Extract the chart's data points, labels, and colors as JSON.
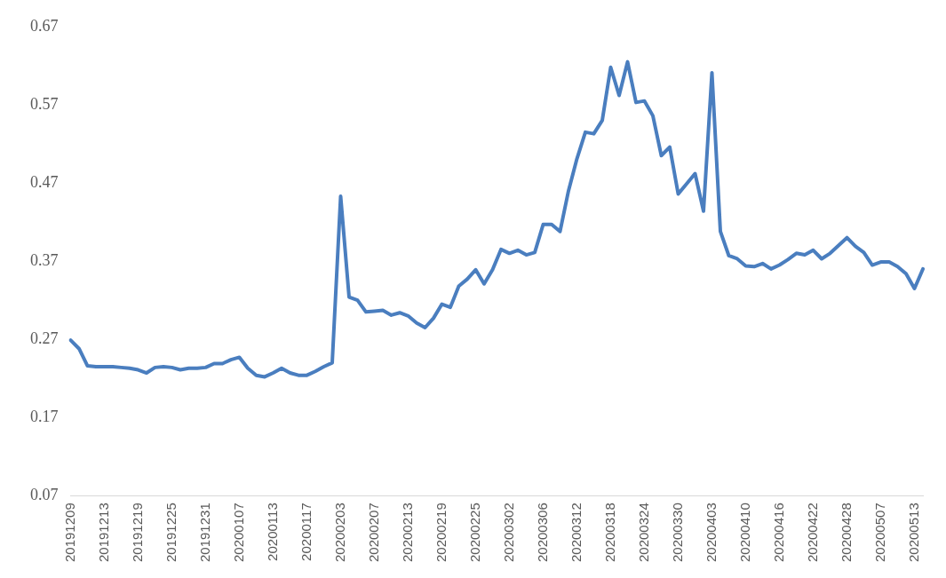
{
  "chart_data": {
    "type": "line",
    "categories": [
      "20191209",
      null,
      null,
      null,
      "20191213",
      null,
      null,
      null,
      "20191219",
      null,
      null,
      null,
      "20191225",
      null,
      null,
      null,
      "20191231",
      null,
      null,
      null,
      "20200107",
      null,
      null,
      null,
      "20200113",
      null,
      null,
      null,
      "20200117",
      null,
      null,
      null,
      "20200203",
      null,
      null,
      null,
      "20200207",
      null,
      null,
      null,
      "20200213",
      null,
      null,
      null,
      "20200219",
      null,
      null,
      null,
      "20200225",
      null,
      null,
      null,
      "20200302",
      null,
      null,
      null,
      "20200306",
      null,
      null,
      null,
      "20200312",
      null,
      null,
      null,
      "20200318",
      null,
      null,
      null,
      "20200324",
      null,
      null,
      null,
      "20200330",
      null,
      null,
      null,
      "20200403",
      null,
      null,
      null,
      "20200410",
      null,
      null,
      null,
      "20200416",
      null,
      null,
      null,
      "20200422",
      null,
      null,
      null,
      "20200428",
      null,
      null,
      null,
      "20200507",
      null,
      null,
      null,
      "20200513",
      null
    ],
    "series": [
      {
        "color": "#4a7ebf",
        "values": [
          0.269,
          0.258,
          0.236,
          0.235,
          0.235,
          0.235,
          0.234,
          0.233,
          0.231,
          0.227,
          0.234,
          0.235,
          0.234,
          0.231,
          0.233,
          0.233,
          0.234,
          0.239,
          0.239,
          0.244,
          0.247,
          0.233,
          0.224,
          0.222,
          0.227,
          0.233,
          0.227,
          0.224,
          0.224,
          0.229,
          0.235,
          0.24,
          0.453,
          0.324,
          0.32,
          0.305,
          0.306,
          0.307,
          0.301,
          0.304,
          0.3,
          0.291,
          0.285,
          0.297,
          0.315,
          0.311,
          0.338,
          0.347,
          0.359,
          0.341,
          0.359,
          0.385,
          0.38,
          0.384,
          0.378,
          0.381,
          0.417,
          0.417,
          0.408,
          0.46,
          0.501,
          0.535,
          0.533,
          0.55,
          0.618,
          0.582,
          0.625,
          0.573,
          0.575,
          0.556,
          0.505,
          0.516,
          0.456,
          0.469,
          0.482,
          0.434,
          0.611,
          0.408,
          0.377,
          0.373,
          0.364,
          0.363,
          0.367,
          0.36,
          0.365,
          0.372,
          0.38,
          0.378,
          0.384,
          0.373,
          0.38,
          0.39,
          0.4,
          0.389,
          0.381,
          0.365,
          0.369,
          0.369,
          0.363,
          0.354,
          0.335,
          0.36
        ]
      }
    ],
    "ylim": [
      0.07,
      0.67
    ],
    "yticks": [
      0.07,
      0.17,
      0.27,
      0.37,
      0.47,
      0.57,
      0.67
    ],
    "grid": false,
    "legend": false,
    "marker": "none",
    "line_style": "solid"
  }
}
